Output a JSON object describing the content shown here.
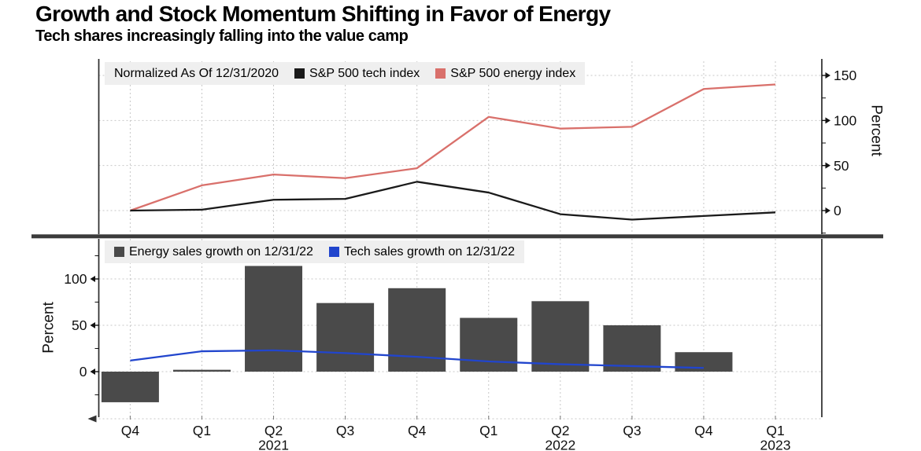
{
  "title": "Growth and Stock Momentum Shifting in Favor of Energy",
  "subtitle": "Tech shares increasingly falling into the value camp",
  "colors": {
    "tech_index": "#1a1a1a",
    "energy_index": "#d9706b",
    "energy_bars": "#4a4a4a",
    "tech_sales_line": "#2145cd",
    "legend_background": "#efefef",
    "gridline": "#c7c7c7",
    "axis": "#2b2b2b",
    "divider": "#3b3b3b"
  },
  "x_axis": {
    "quarter_labels": [
      "Q4",
      "Q1",
      "Q2",
      "Q3",
      "Q4",
      "Q1",
      "Q2",
      "Q3",
      "Q4",
      "Q1"
    ],
    "year_labels": [
      {
        "index": 2,
        "text": "2021"
      },
      {
        "index": 6,
        "text": "2022"
      },
      {
        "index": 9,
        "text": "2023"
      }
    ]
  },
  "chart_data": [
    {
      "type": "line",
      "panel": "top",
      "note": "Normalized As Of 12/31/2020",
      "categories": [
        "Q4 2020",
        "Q1 2021",
        "Q2 2021",
        "Q3 2021",
        "Q4 2021",
        "Q1 2022",
        "Q2 2022",
        "Q3 2022",
        "Q4 2022",
        "Q1 2023"
      ],
      "series": [
        {
          "name": "S&P 500 tech index",
          "color": "#1a1a1a",
          "values": [
            0,
            1,
            12,
            13,
            32,
            20,
            -4,
            -10,
            -6,
            -2
          ]
        },
        {
          "name": "S&P 500 energy index",
          "color": "#d9706b",
          "values": [
            0,
            28,
            40,
            36,
            47,
            104,
            91,
            93,
            135,
            140
          ]
        }
      ],
      "ylabel": "Percent",
      "yticks": [
        0,
        50,
        100,
        150
      ],
      "ylim": [
        -28,
        168
      ],
      "axis_side": "right",
      "grid": true,
      "legend_position": "top-left"
    },
    {
      "type": "bar",
      "panel": "bottom",
      "categories": [
        "Q4 2020",
        "Q1 2021",
        "Q2 2021",
        "Q3 2021",
        "Q4 2021",
        "Q1 2022",
        "Q2 2022",
        "Q3 2022",
        "Q4 2022",
        "Q1 2023"
      ],
      "series": [
        {
          "name": "Energy sales growth on 12/31/22",
          "kind": "bar",
          "color": "#4a4a4a",
          "values": [
            -33,
            2,
            114,
            74,
            90,
            58,
            76,
            50,
            21,
            null
          ]
        },
        {
          "name": "Tech sales growth on 12/31/22",
          "kind": "line",
          "color": "#2145cd",
          "values": [
            12,
            22,
            23,
            20,
            16,
            11,
            8,
            6,
            4,
            null
          ]
        }
      ],
      "ylabel": "Percent",
      "yticks": [
        0,
        50,
        100
      ],
      "ylim": [
        -51,
        143
      ],
      "axis_side": "left",
      "grid": true,
      "legend_position": "top-left"
    }
  ]
}
